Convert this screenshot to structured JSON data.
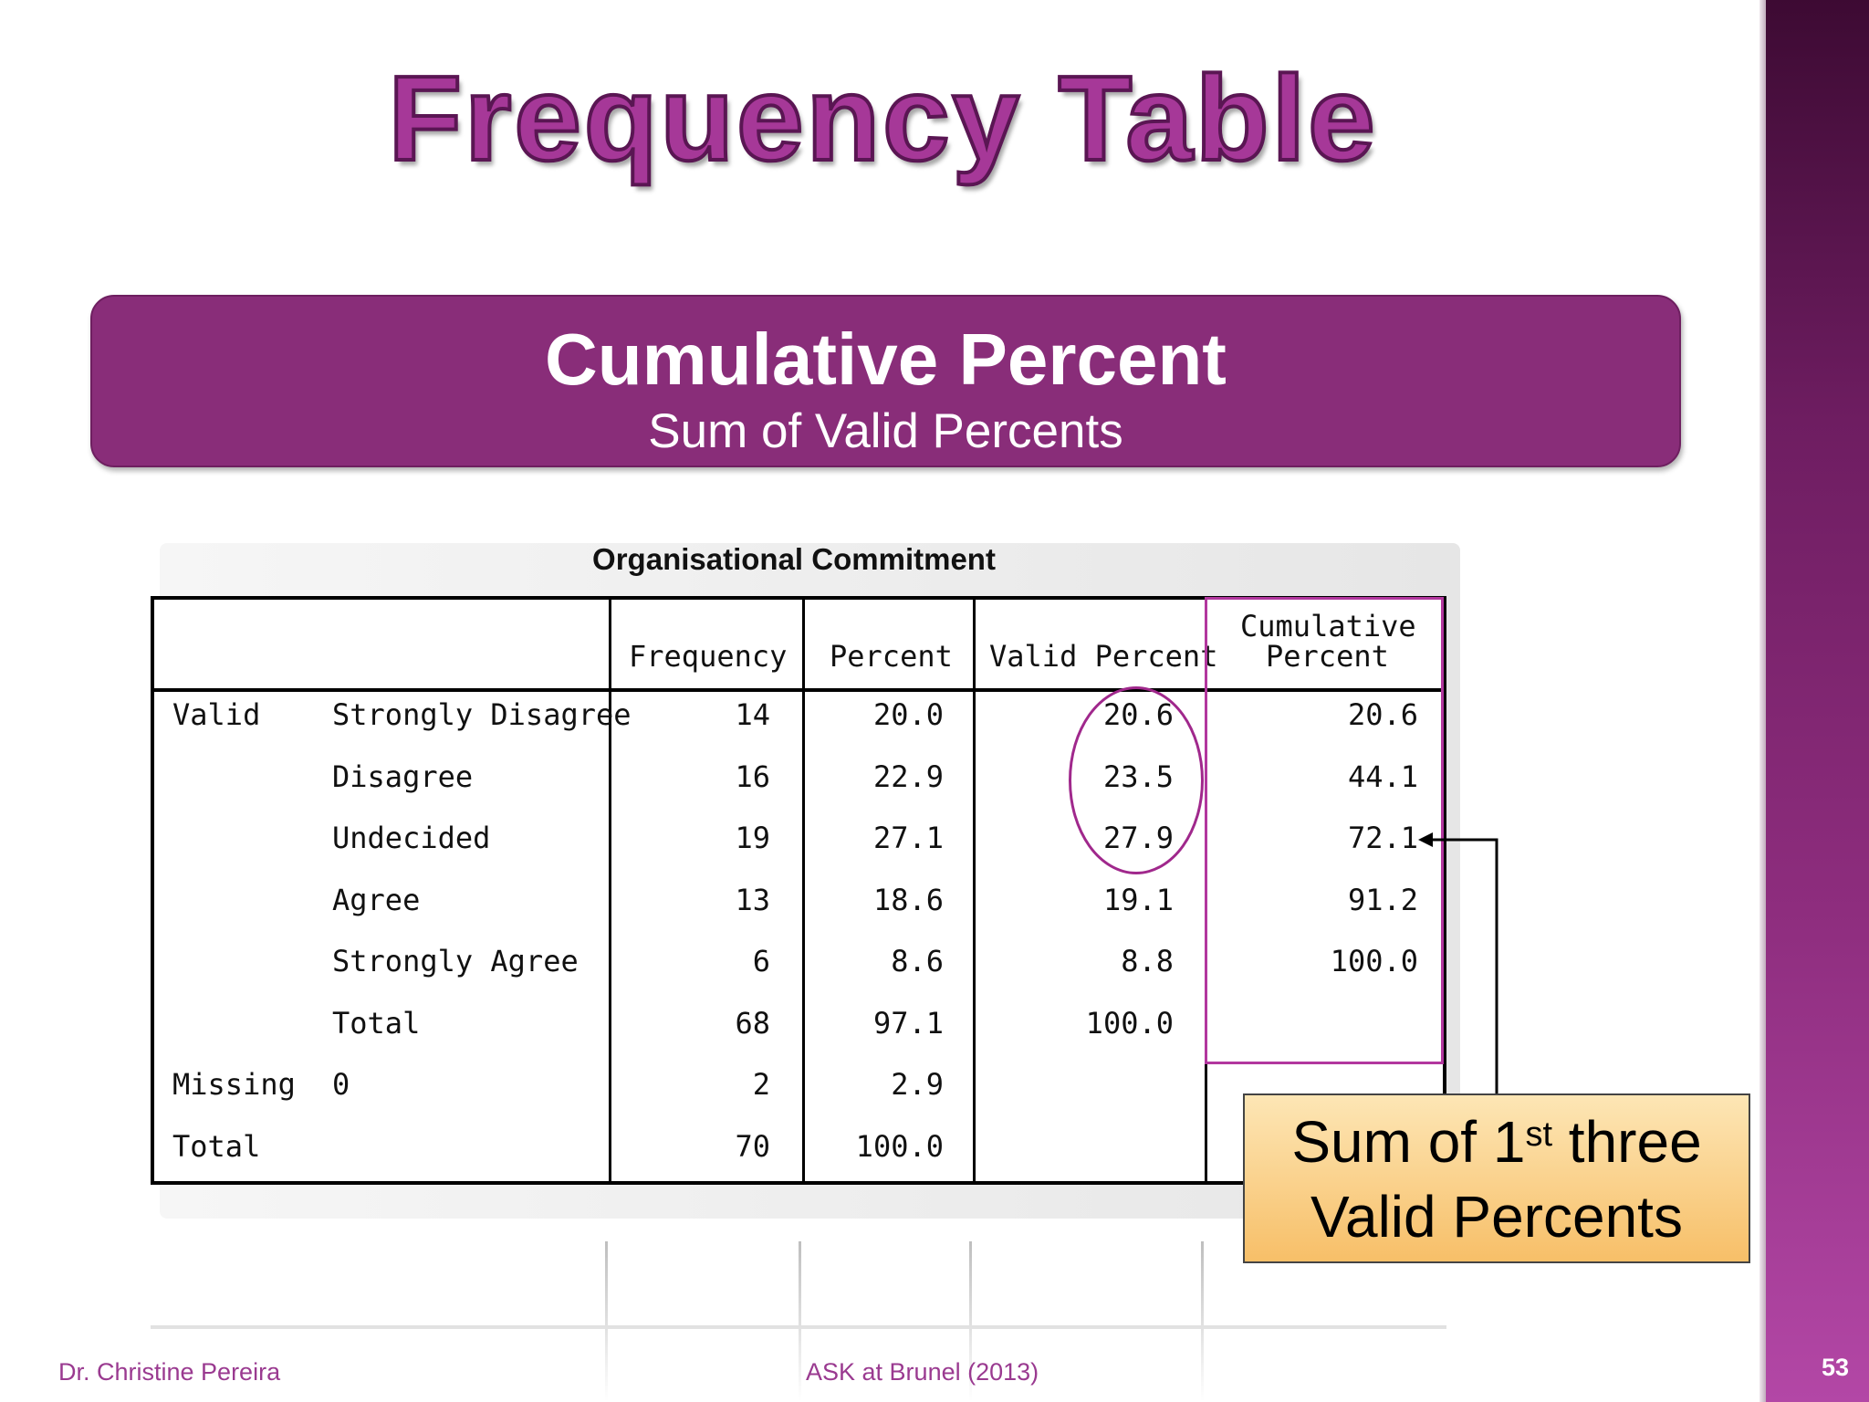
{
  "slide": {
    "title": "Frequency Table",
    "banner_title": "Cumulative Percent",
    "banner_subtitle": "Sum of Valid Percents",
    "page_number": "53"
  },
  "table": {
    "title": "Organisational Commitment",
    "headers": [
      "Frequency",
      "Percent",
      "Valid Percent",
      "Cumulative",
      "Percent"
    ],
    "rows": [
      {
        "group": "Valid",
        "label": "Strongly Disagree",
        "frequency": "14",
        "percent": "20.0",
        "valid": "20.6",
        "cumulative": "20.6"
      },
      {
        "group": "",
        "label": "Disagree",
        "frequency": "16",
        "percent": "22.9",
        "valid": "23.5",
        "cumulative": "44.1"
      },
      {
        "group": "",
        "label": "Undecided",
        "frequency": "19",
        "percent": "27.1",
        "valid": "27.9",
        "cumulative": "72.1"
      },
      {
        "group": "",
        "label": "Agree",
        "frequency": "13",
        "percent": "18.6",
        "valid": "19.1",
        "cumulative": "91.2"
      },
      {
        "group": "",
        "label": "Strongly Agree",
        "frequency": "6",
        "percent": "8.6",
        "valid": "8.8",
        "cumulative": "100.0"
      },
      {
        "group": "",
        "label": "Total",
        "frequency": "68",
        "percent": "97.1",
        "valid": "100.0",
        "cumulative": ""
      },
      {
        "group": "Missing",
        "label": "0",
        "frequency": "2",
        "percent": "2.9",
        "valid": "",
        "cumulative": ""
      },
      {
        "group": "Total",
        "label": "",
        "frequency": "70",
        "percent": "100.0",
        "valid": "",
        "cumulative": ""
      }
    ]
  },
  "callout": {
    "line1_a": "Sum of 1",
    "line1_sup": "st",
    "line1_b": " three",
    "line2": "Valid Percents"
  },
  "footer": {
    "author": "Dr. Christine Pereira",
    "course": "ASK at Brunel (2013)"
  },
  "colors": {
    "accent": "#892d79",
    "title": "#a63898",
    "callout": "#f7bf68"
  }
}
